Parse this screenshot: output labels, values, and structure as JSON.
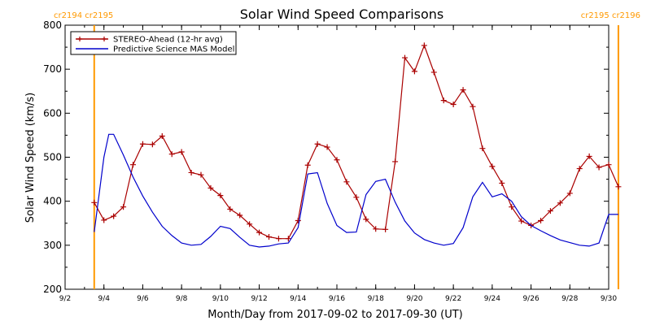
{
  "chart_data": {
    "type": "line",
    "title": "Solar Wind Speed Comparisons",
    "xlabel": "Month/Day from 2017-09-02 to 2017-09-30 (UT)",
    "ylabel": "Solar Wind Speed (km/s)",
    "xlim": [
      "2017-09-02",
      "2017-09-30"
    ],
    "ylim": [
      200,
      800
    ],
    "yticks": [
      200,
      300,
      400,
      500,
      600,
      700,
      800
    ],
    "xtick_labels": [
      "9/2",
      "9/4",
      "9/6",
      "9/8",
      "9/10",
      "9/12",
      "9/14",
      "9/16",
      "9/18",
      "9/20",
      "9/22",
      "9/24",
      "9/26",
      "9/28",
      "9/30"
    ],
    "xtick_dates": [
      "2017-09-02",
      "2017-09-04",
      "2017-09-06",
      "2017-09-08",
      "2017-09-10",
      "2017-09-12",
      "2017-09-14",
      "2017-09-16",
      "2017-09-18",
      "2017-09-20",
      "2017-09-22",
      "2017-09-24",
      "2017-09-26",
      "2017-09-28",
      "2017-09-30"
    ],
    "legend_position": "top-left",
    "carrington_markers": [
      {
        "label": "cr2194 cr2195",
        "date": "2017-09-03 12:00",
        "color": "#ff9900"
      },
      {
        "label": "cr2195 cr2196",
        "date": "2017-09-30 12:00",
        "color": "#ff9900"
      }
    ],
    "series": [
      {
        "name": "STEREO-Ahead (12-hr avg)",
        "color": "#aa0000",
        "marker": "plus",
        "x": [
          "2017-09-03 12:00",
          "2017-09-04 00:00",
          "2017-09-04 12:00",
          "2017-09-05 00:00",
          "2017-09-05 12:00",
          "2017-09-06 00:00",
          "2017-09-06 12:00",
          "2017-09-07 00:00",
          "2017-09-07 12:00",
          "2017-09-08 00:00",
          "2017-09-08 12:00",
          "2017-09-09 00:00",
          "2017-09-09 12:00",
          "2017-09-10 00:00",
          "2017-09-10 12:00",
          "2017-09-11 00:00",
          "2017-09-11 12:00",
          "2017-09-12 00:00",
          "2017-09-12 12:00",
          "2017-09-13 00:00",
          "2017-09-13 12:00",
          "2017-09-14 00:00",
          "2017-09-14 12:00",
          "2017-09-15 00:00",
          "2017-09-15 12:00",
          "2017-09-16 00:00",
          "2017-09-16 12:00",
          "2017-09-17 00:00",
          "2017-09-17 12:00",
          "2017-09-18 00:00",
          "2017-09-18 12:00",
          "2017-09-19 00:00",
          "2017-09-19 12:00",
          "2017-09-20 00:00",
          "2017-09-20 12:00",
          "2017-09-21 00:00",
          "2017-09-21 12:00",
          "2017-09-22 00:00",
          "2017-09-22 12:00",
          "2017-09-23 00:00",
          "2017-09-23 12:00",
          "2017-09-24 00:00",
          "2017-09-24 12:00",
          "2017-09-25 00:00",
          "2017-09-25 12:00",
          "2017-09-26 00:00",
          "2017-09-26 12:00",
          "2017-09-27 00:00",
          "2017-09-27 12:00",
          "2017-09-28 00:00",
          "2017-09-28 12:00",
          "2017-09-29 00:00",
          "2017-09-29 12:00",
          "2017-09-30 00:00",
          "2017-09-30 12:00"
        ],
        "y": [
          397,
          357,
          366,
          387,
          483,
          530,
          529,
          548,
          507,
          512,
          465,
          460,
          430,
          413,
          382,
          368,
          348,
          329,
          319,
          315,
          315,
          356,
          482,
          530,
          523,
          494,
          444,
          409,
          359,
          337,
          336,
          490,
          726,
          695,
          754,
          693,
          629,
          620,
          653,
          615,
          520,
          479,
          441,
          387,
          355,
          345,
          356,
          378,
          396,
          418,
          474,
          502,
          477,
          483,
          433
        ]
      },
      {
        "name": "Predictive Science MAS Model",
        "color": "#0000cc",
        "x": [
          "2017-09-03 12:00",
          "2017-09-04 00:00",
          "2017-09-04 06:00",
          "2017-09-04 12:00",
          "2017-09-05 00:00",
          "2017-09-05 12:00",
          "2017-09-06 00:00",
          "2017-09-06 12:00",
          "2017-09-07 00:00",
          "2017-09-07 12:00",
          "2017-09-08 00:00",
          "2017-09-08 12:00",
          "2017-09-09 00:00",
          "2017-09-09 12:00",
          "2017-09-10 00:00",
          "2017-09-10 12:00",
          "2017-09-11 00:00",
          "2017-09-11 12:00",
          "2017-09-12 00:00",
          "2017-09-12 12:00",
          "2017-09-13 00:00",
          "2017-09-13 12:00",
          "2017-09-14 00:00",
          "2017-09-14 12:00",
          "2017-09-15 00:00",
          "2017-09-15 12:00",
          "2017-09-16 00:00",
          "2017-09-16 12:00",
          "2017-09-17 00:00",
          "2017-09-17 12:00",
          "2017-09-18 00:00",
          "2017-09-18 12:00",
          "2017-09-19 00:00",
          "2017-09-19 12:00",
          "2017-09-20 00:00",
          "2017-09-20 12:00",
          "2017-09-21 00:00",
          "2017-09-21 12:00",
          "2017-09-22 00:00",
          "2017-09-22 12:00",
          "2017-09-23 00:00",
          "2017-09-23 12:00",
          "2017-09-24 00:00",
          "2017-09-24 12:00",
          "2017-09-25 00:00",
          "2017-09-25 12:00",
          "2017-09-26 00:00",
          "2017-09-26 12:00",
          "2017-09-27 00:00",
          "2017-09-27 12:00",
          "2017-09-28 00:00",
          "2017-09-28 12:00",
          "2017-09-29 00:00",
          "2017-09-29 12:00",
          "2017-09-30 00:00",
          "2017-09-30 06:00",
          "2017-09-30 12:00"
        ],
        "y": [
          330,
          500,
          552,
          552,
          505,
          455,
          412,
          375,
          343,
          322,
          305,
          300,
          302,
          320,
          343,
          338,
          318,
          300,
          296,
          298,
          303,
          305,
          340,
          462,
          465,
          395,
          345,
          329,
          330,
          415,
          445,
          450,
          398,
          355,
          328,
          313,
          305,
          300,
          304,
          340,
          410,
          443,
          410,
          417,
          400,
          365,
          345,
          333,
          322,
          312,
          306,
          300,
          298,
          305,
          370,
          370,
          370
        ]
      }
    ]
  }
}
